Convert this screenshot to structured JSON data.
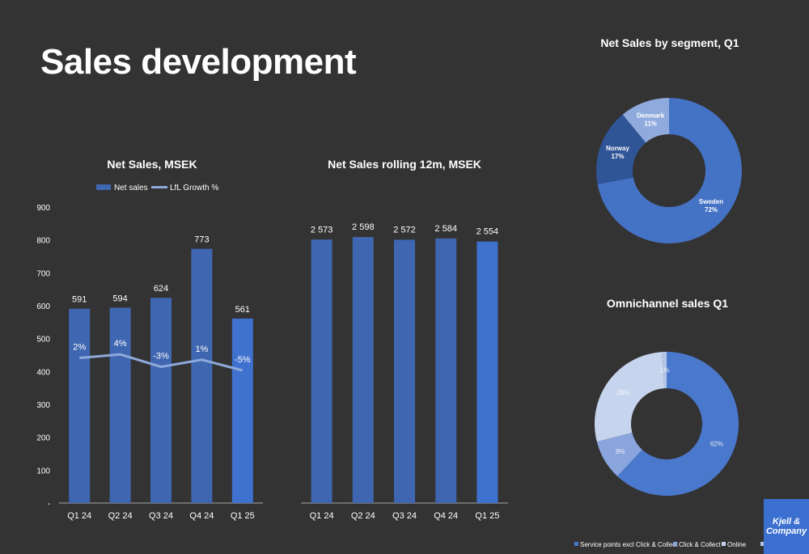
{
  "page": {
    "title": "Sales development",
    "logo_line1": "Kjell &",
    "logo_line2": "Company"
  },
  "colors": {
    "background": "#333333",
    "bar": "#3f66b0",
    "bar_highlight": "#3f72cf",
    "line": "#8ea9db",
    "axis": "#a6a6a6"
  },
  "chart_data": [
    {
      "type": "bar",
      "title": "Net Sales, MSEK",
      "categories": [
        "Q1 24",
        "Q2 24",
        "Q3 24",
        "Q4 24",
        "Q1 25"
      ],
      "ylim": [
        0,
        900
      ],
      "yticks": [
        "-",
        "100",
        "200",
        "300",
        "400",
        "500",
        "600",
        "700",
        "800",
        "900"
      ],
      "legend_position": "top",
      "grid": false,
      "series": [
        {
          "name": "Net sales",
          "kind": "bar",
          "values": [
            591,
            594,
            624,
            773,
            561
          ],
          "labels": [
            "591",
            "594",
            "624",
            "773",
            "561"
          ]
        },
        {
          "name": "LfL Growth %",
          "kind": "line",
          "values": [
            2,
            4,
            -3,
            1,
            -5
          ],
          "labels": [
            "2%",
            "4%",
            "-3%",
            "1%",
            "-5%"
          ]
        }
      ]
    },
    {
      "type": "bar",
      "title": "Net Sales rolling 12m, MSEK",
      "categories": [
        "Q1 24",
        "Q2 24",
        "Q3 24",
        "Q4 24",
        "Q1 25"
      ],
      "values": [
        2573,
        2598,
        2572,
        2584,
        2554
      ],
      "labels": [
        "2 573",
        "2 598",
        "2 572",
        "2 584",
        "2 554"
      ],
      "grid": false
    },
    {
      "type": "pie",
      "title": "Net Sales by segment, Q1",
      "donut": true,
      "slices": [
        {
          "label": "Sweden",
          "value": 72,
          "text": "72%",
          "color": "#4472c4"
        },
        {
          "label": "Norway",
          "value": 17,
          "text": "17%",
          "color": "#2f5597"
        },
        {
          "label": "Denmark",
          "value": 11,
          "text": "11%",
          "color": "#8faadc"
        }
      ]
    },
    {
      "type": "pie",
      "title": "Omnichannel sales Q1",
      "donut": true,
      "legend_position": "bottom",
      "slices": [
        {
          "label": "Service points excl Click & Collect",
          "value": 62,
          "text": "62%",
          "color": "#4a78cc"
        },
        {
          "label": "Click & Collect",
          "value": 9,
          "text": "9%",
          "color": "#8aa5dd"
        },
        {
          "label": "Online",
          "value": 28,
          "text": "28%",
          "color": "#c7d4ee"
        },
        {
          "label": "Other",
          "value": 1,
          "text": "1%",
          "color": "#b4c6e7"
        }
      ]
    }
  ]
}
